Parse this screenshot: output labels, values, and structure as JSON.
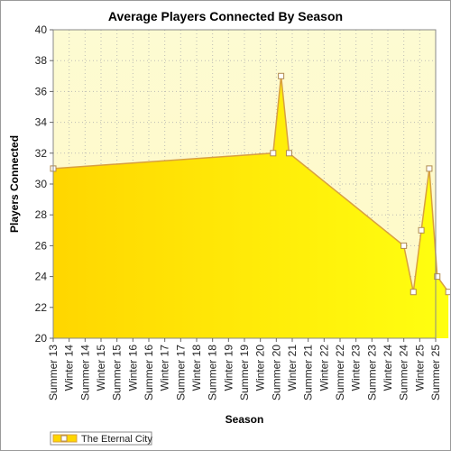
{
  "chart_data": {
    "type": "area",
    "title": "Average Players Connected By Season",
    "xlabel": "Season",
    "ylabel": "Players Connected",
    "ylim": [
      20,
      40
    ],
    "yticks": [
      20,
      22,
      24,
      26,
      28,
      30,
      32,
      34,
      36,
      38,
      40
    ],
    "categories": [
      "Summer 13",
      "Winter 14",
      "Summer 14",
      "Winter 15",
      "Summer 15",
      "Winter 16",
      "Summer 16",
      "Winter 17",
      "Summer 17",
      "Winter 18",
      "Summer 18",
      "Winter 19",
      "Summer 19",
      "Winter 20",
      "Summer 20",
      "Winter 21",
      "Summer 21",
      "Winter 22",
      "Summer 22",
      "Winter 23",
      "Summer 23",
      "Winter 24",
      "Summer 24",
      "Winter 25",
      "Summer 25"
    ],
    "series": [
      {
        "name": "The Eternal City",
        "points": [
          {
            "x": 0,
            "y": 31
          },
          {
            "x": 13.8,
            "y": 32
          },
          {
            "x": 14.3,
            "y": 37
          },
          {
            "x": 14.8,
            "y": 32
          },
          {
            "x": 22.0,
            "y": 26
          },
          {
            "x": 22.6,
            "y": 23
          },
          {
            "x": 23.1,
            "y": 27
          },
          {
            "x": 23.6,
            "y": 31
          },
          {
            "x": 24.1,
            "y": 24
          },
          {
            "x": 24.8,
            "y": 23
          }
        ]
      }
    ],
    "grid": true,
    "legend_position": "bottom-left",
    "colors": {
      "plot_bg_top": "#fdfbd2",
      "plot_bg_bottom": "#fff9c6",
      "fill_left": "#ffd600",
      "fill_right": "#ffff10",
      "line": "#d8a040",
      "marker_fill": "#ffffff",
      "marker_stroke": "#b08a50",
      "grid": "#bdbdb5"
    }
  }
}
